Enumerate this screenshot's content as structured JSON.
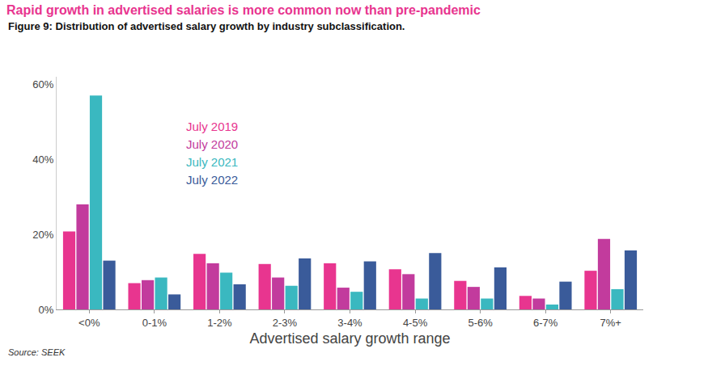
{
  "chart_data": {
    "type": "bar",
    "title": "Rapid growth in advertised salaries is more common now than pre-pandemic",
    "subtitle": "Figure 9: Distribution of advertised salary growth by industry subclassification.",
    "x_label": "Advertised salary growth range",
    "source": "Source: SEEK",
    "categories": [
      "<0%",
      "0-1%",
      "1-2%",
      "2-3%",
      "3-4%",
      "4-5%",
      "5-6%",
      "6-7%",
      "7%+"
    ],
    "series": [
      {
        "name": "July 2019",
        "color": "#e8358f",
        "values": [
          20.8,
          7.0,
          14.8,
          12.1,
          12.3,
          10.7,
          7.6,
          3.6,
          10.3
        ]
      },
      {
        "name": "July 2020",
        "color": "#c23b9d",
        "values": [
          28.0,
          7.8,
          12.3,
          8.5,
          5.8,
          9.4,
          6.0,
          2.9,
          18.8
        ]
      },
      {
        "name": "July 2021",
        "color": "#3ab8c0",
        "values": [
          57.0,
          8.5,
          9.8,
          6.3,
          4.7,
          2.9,
          2.9,
          1.3,
          5.4
        ]
      },
      {
        "name": "July 2022",
        "color": "#3a5b9a",
        "values": [
          13.0,
          4.0,
          6.7,
          13.6,
          12.8,
          15.0,
          11.2,
          7.4,
          15.7
        ]
      }
    ],
    "ylim": [
      0,
      62
    ],
    "yticks": [
      {
        "value": 0,
        "label": "0%"
      },
      {
        "value": 20,
        "label": "20%"
      },
      {
        "value": 40,
        "label": "40%"
      },
      {
        "value": 60,
        "label": "60%"
      }
    ],
    "grid": false,
    "legend": "upper left"
  }
}
